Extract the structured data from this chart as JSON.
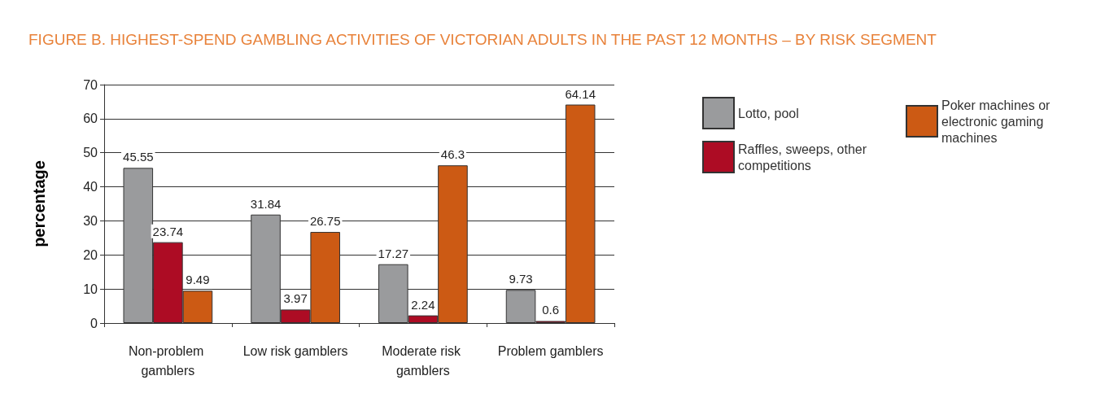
{
  "chart_data": {
    "type": "bar",
    "title": "FIGURE B. HIGHEST-SPEND GAMBLING ACTIVITIES OF VICTORIAN ADULTS IN THE PAST 12 MONTHS – BY RISK SEGMENT",
    "ylabel": "percentage",
    "categories": [
      "Non-problem gamblers",
      "Low risk gamblers",
      "Moderate risk gamblers",
      "Problem gamblers"
    ],
    "series": [
      {
        "name": "Lotto, pool",
        "color": "#9a9b9d",
        "values": [
          45.55,
          31.84,
          17.27,
          9.73
        ]
      },
      {
        "name": "Raffles, sweeps, other competitions",
        "color": "#ad0c24",
        "values": [
          23.74,
          3.97,
          2.24,
          0.6
        ]
      },
      {
        "name": "Poker machines or electronic gaming machines",
        "color": "#cc5a14",
        "values": [
          9.49,
          26.75,
          46.3,
          64.14
        ]
      }
    ],
    "ylim": [
      0,
      70
    ],
    "yticks": [
      0,
      10,
      20,
      30,
      40,
      50,
      60,
      70
    ],
    "grid": "y",
    "legend": "right",
    "data_labels": true
  }
}
